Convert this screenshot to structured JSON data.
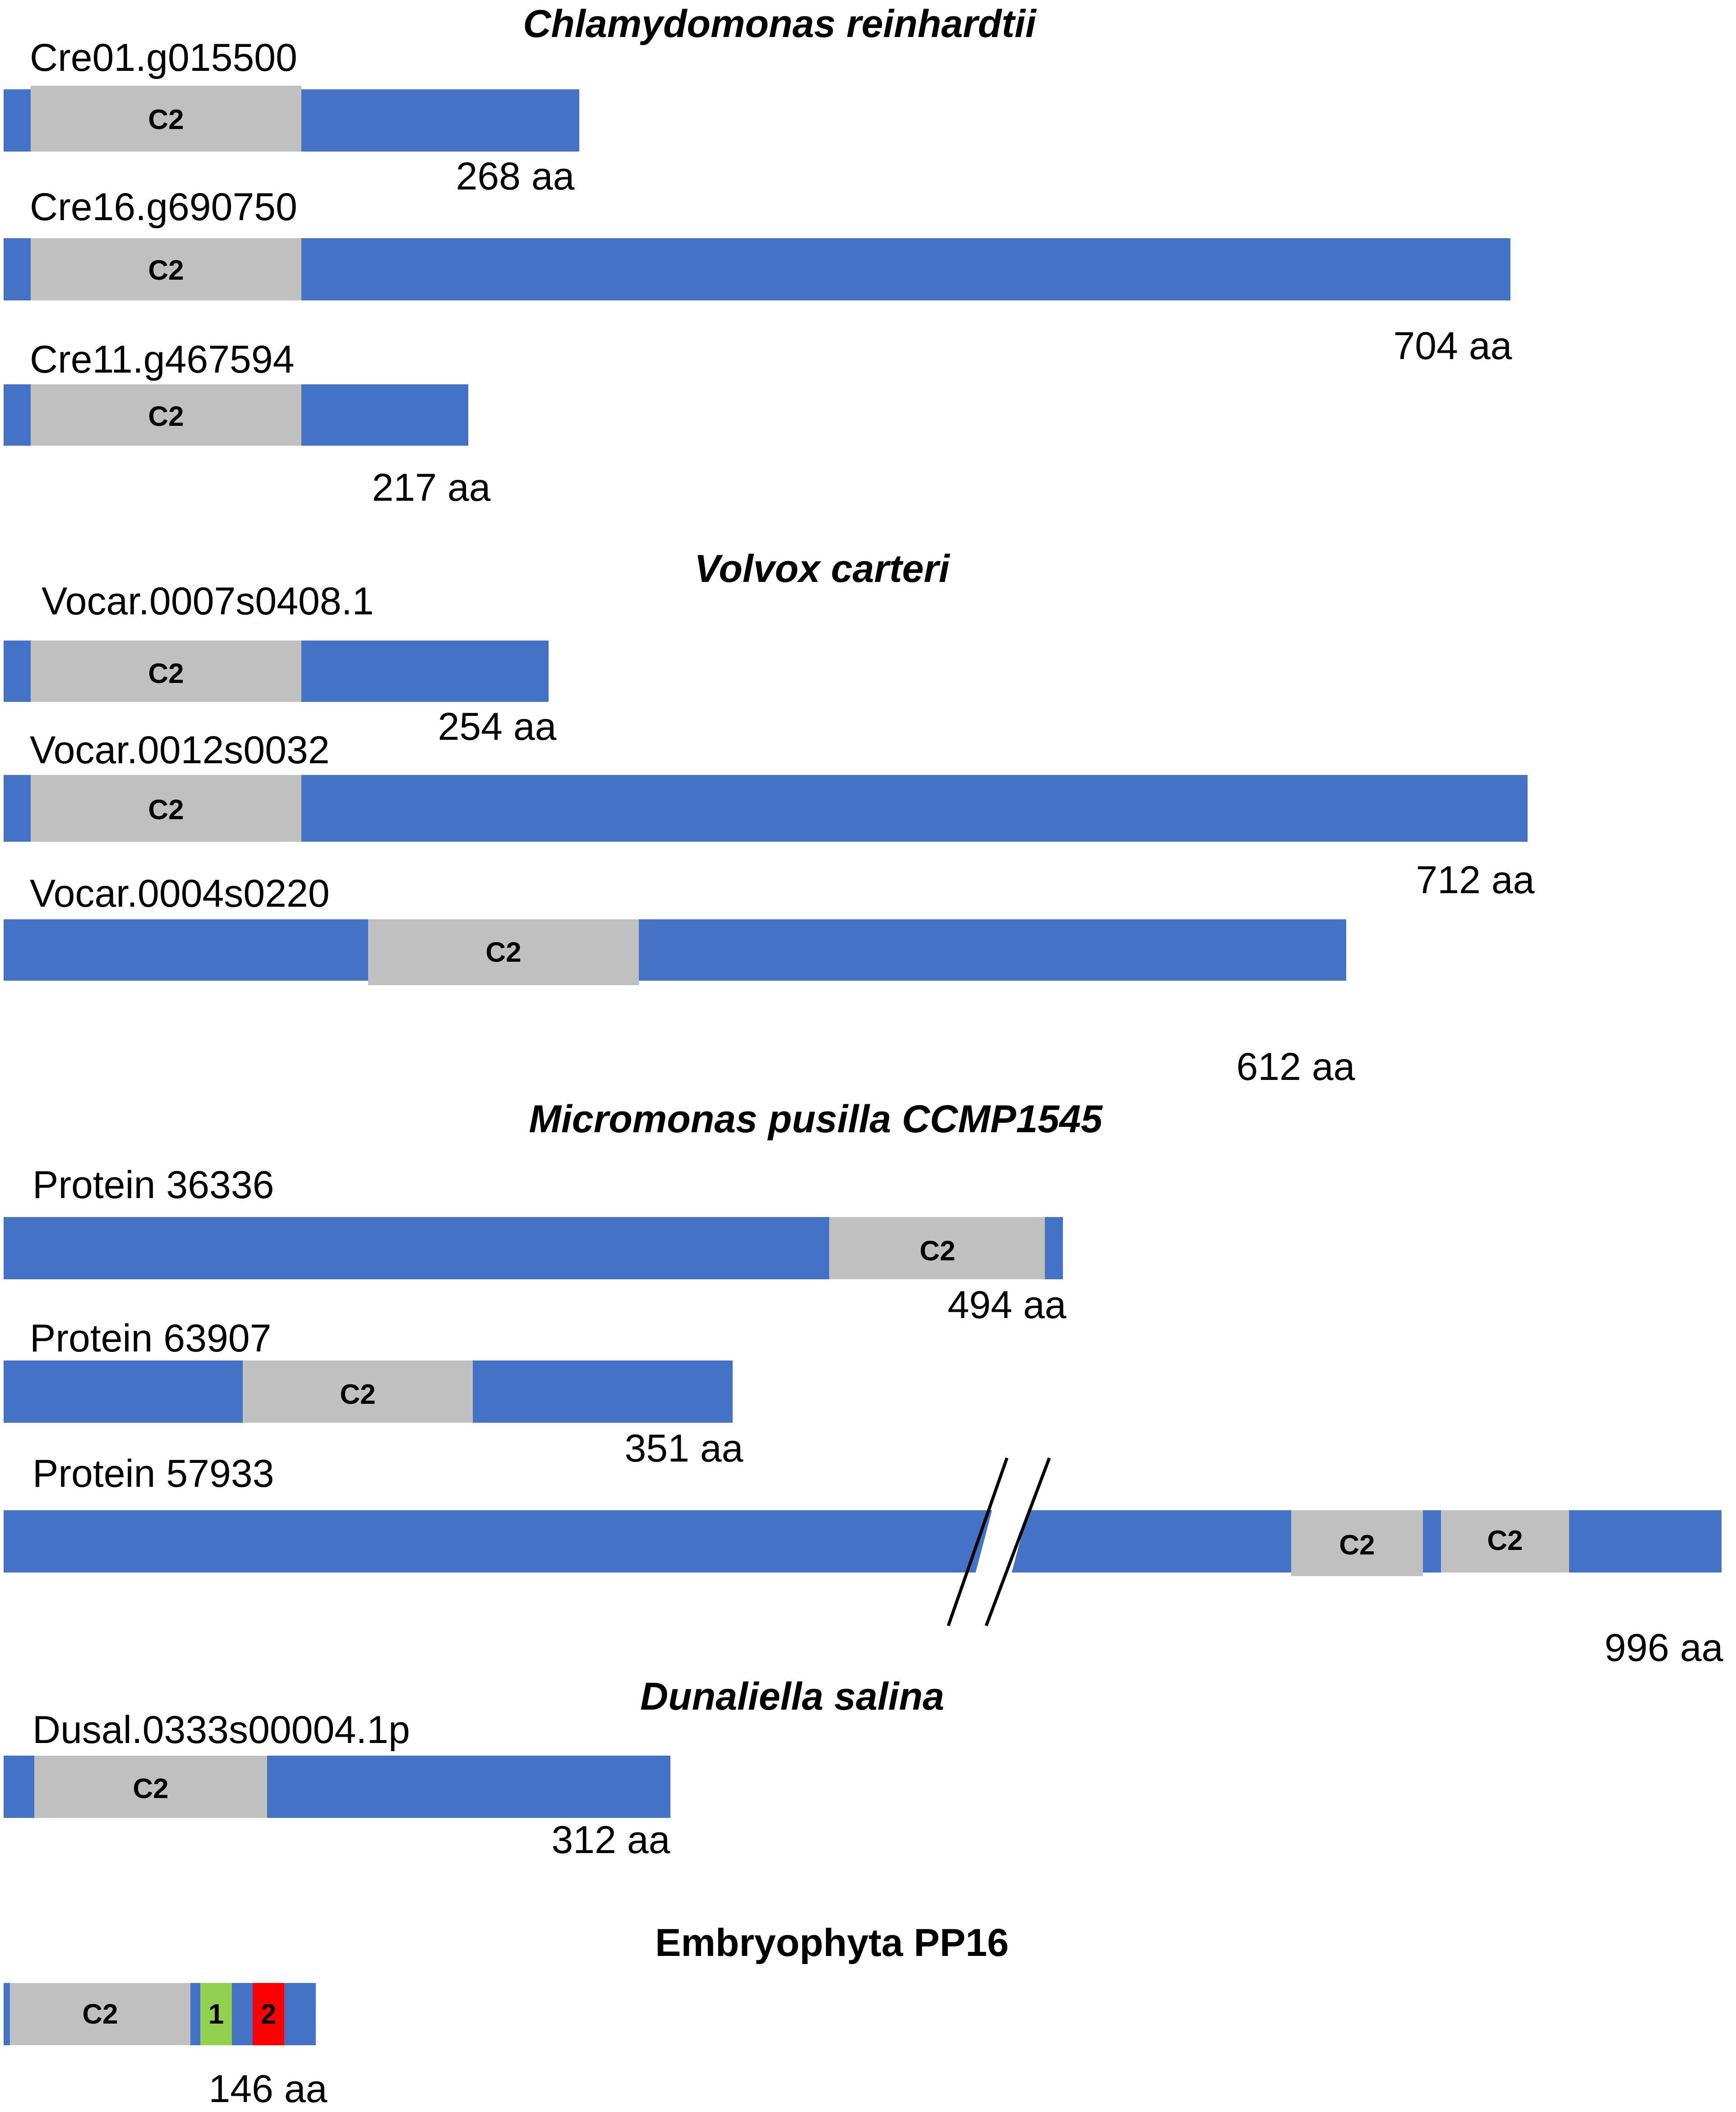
{
  "colors": {
    "backbone": "#4472C4",
    "c2_domain": "#C0C0C0",
    "motif_1": "#92D050",
    "motif_2": "#FF0000",
    "text": "#000000"
  },
  "groups": [
    {
      "species": "Chlamydomonas reinhardtii",
      "italic": true,
      "proteins": [
        {
          "name": "Cre01.g015500",
          "length_label": "268 aa",
          "domains": [
            {
              "type": "C2",
              "label": "C2"
            }
          ]
        },
        {
          "name": "Cre16.g690750",
          "length_label": "704 aa",
          "domains": [
            {
              "type": "C2",
              "label": "C2"
            }
          ]
        },
        {
          "name": "Cre11.g467594",
          "length_label": "217 aa",
          "domains": [
            {
              "type": "C2",
              "label": "C2"
            }
          ]
        }
      ]
    },
    {
      "species": "Volvox carteri",
      "italic": true,
      "proteins": [
        {
          "name": "Vocar.0007s0408.1",
          "length_label": "254 aa",
          "domains": [
            {
              "type": "C2",
              "label": "C2"
            }
          ]
        },
        {
          "name": "Vocar.0012s0032",
          "length_label": "712 aa",
          "domains": [
            {
              "type": "C2",
              "label": "C2"
            }
          ]
        },
        {
          "name": "Vocar.0004s0220",
          "length_label": "612 aa",
          "domains": [
            {
              "type": "C2",
              "label": "C2"
            }
          ]
        }
      ]
    },
    {
      "species": "Micromonas pusilla CCMP1545",
      "italic": true,
      "proteins": [
        {
          "name": "Protein 36336",
          "length_label": "494 aa",
          "domains": [
            {
              "type": "C2",
              "label": "C2"
            }
          ]
        },
        {
          "name": "Protein 63907",
          "length_label": "351 aa",
          "domains": [
            {
              "type": "C2",
              "label": "C2"
            }
          ]
        },
        {
          "name": "Protein 57933",
          "length_label": "996 aa",
          "has_break": true,
          "domains": [
            {
              "type": "C2",
              "label": "C2"
            },
            {
              "type": "C2",
              "label": "C2"
            }
          ]
        }
      ]
    },
    {
      "species": "Dunaliella salina",
      "italic": true,
      "proteins": [
        {
          "name": "Dusal.0333s00004.1p",
          "length_label": "312 aa",
          "domains": [
            {
              "type": "C2",
              "label": "C2"
            }
          ]
        }
      ]
    },
    {
      "species": "Embryophyta PP16",
      "italic": false,
      "proteins": [
        {
          "name": "",
          "length_label": "146 aa",
          "domains": [
            {
              "type": "C2",
              "label": "C2"
            },
            {
              "type": "motif1",
              "label": "1"
            },
            {
              "type": "motif2",
              "label": "2"
            }
          ]
        }
      ]
    }
  ]
}
